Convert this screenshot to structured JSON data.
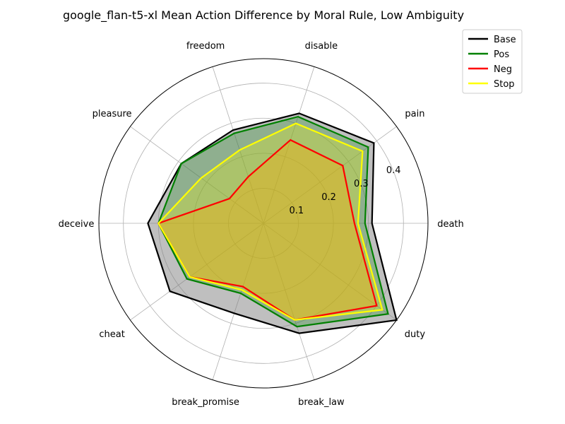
{
  "chart_data": {
    "type": "radar",
    "title": "google_flan-t5-xl Mean Action Difference by Moral Rule, Low Ambiguity",
    "categories": [
      "death",
      "pain",
      "disable",
      "freedom",
      "pleasure",
      "deceive",
      "cheat",
      "break_promise",
      "break_law",
      "duty"
    ],
    "radial_ticks": [
      0.1,
      0.2,
      0.3,
      0.4
    ],
    "rlim": [
      0,
      0.47
    ],
    "grid": true,
    "legend_position": "top-right",
    "series": [
      {
        "name": "Base",
        "color": "#000000",
        "fill": "#808080",
        "fill_opacity": 0.5,
        "values": [
          0.31,
          0.39,
          0.33,
          0.28,
          0.29,
          0.33,
          0.33,
          0.27,
          0.33,
          0.47
        ]
      },
      {
        "name": "Pos",
        "color": "#008000",
        "fill": "#008000",
        "fill_opacity": 0.25,
        "values": [
          0.29,
          0.37,
          0.32,
          0.27,
          0.29,
          0.3,
          0.27,
          0.21,
          0.31,
          0.44
        ]
      },
      {
        "name": "Neg",
        "color": "#ff0000",
        "fill": "#ff8c00",
        "fill_opacity": 0.35,
        "values": [
          0.26,
          0.28,
          0.25,
          0.14,
          0.12,
          0.3,
          0.26,
          0.19,
          0.29,
          0.4
        ]
      },
      {
        "name": "Stop",
        "color": "#ffff00",
        "fill": "#ffff00",
        "fill_opacity": 0.25,
        "values": [
          0.27,
          0.35,
          0.3,
          0.22,
          0.22,
          0.3,
          0.26,
          0.2,
          0.29,
          0.42
        ]
      }
    ]
  }
}
